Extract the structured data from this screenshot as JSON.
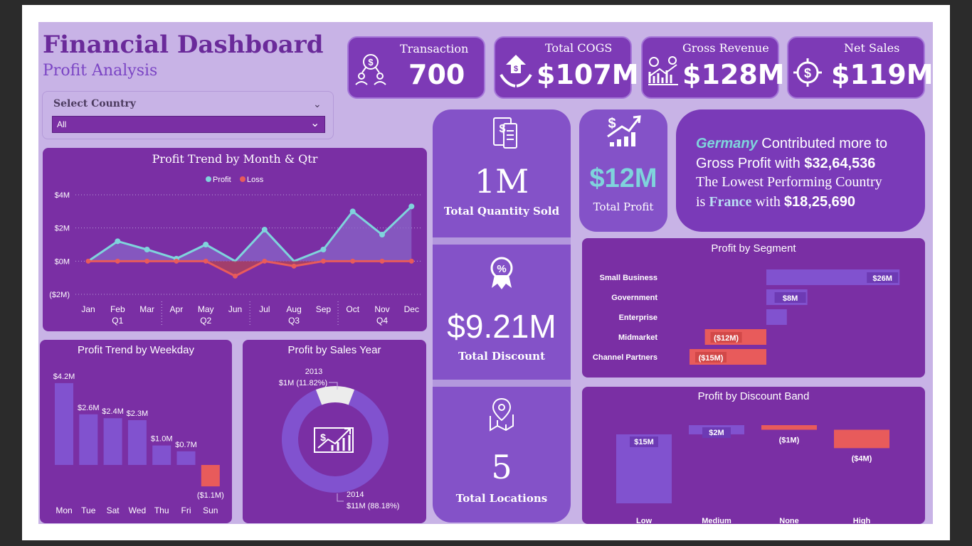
{
  "header": {
    "title": "Financial Dashboard",
    "subtitle": "Profit Analysis"
  },
  "filter": {
    "label": "Select Country",
    "selected": "All"
  },
  "kpis": {
    "transaction": {
      "label": "Transaction",
      "value": "700"
    },
    "cogs": {
      "label": "Total COGS",
      "value": "$107M"
    },
    "gross_revenue": {
      "label": "Gross Revenue",
      "value": "$128M"
    },
    "net_sales": {
      "label": "Net Sales",
      "value": "$119M"
    }
  },
  "center_stack": {
    "quantity": {
      "value": "1M",
      "label": "Total Quantity Sold"
    },
    "discount": {
      "value": "$9.21M",
      "label": "Total Discount"
    },
    "locations": {
      "value": "5",
      "label": "Total Locations"
    }
  },
  "total_profit": {
    "value": "$12M",
    "label": "Total Profit"
  },
  "insight": {
    "top_country": "Germany",
    "line1_rest": " Contributed more to",
    "line2_pre": "Gross Profit with ",
    "top_value": "$32,64,536",
    "line3": "The Lowest Performing Country",
    "line4_pre": "is ",
    "low_country": "France",
    "line4_mid": " with ",
    "low_value": "$18,25,690"
  },
  "colors": {
    "accent_profit": "#7fd4dc",
    "loss": "#e85b5b",
    "bar": "#8152cf",
    "card": "#7a2fa4"
  },
  "chart_data": [
    {
      "type": "line",
      "title": "Profit Trend by Month & Qtr",
      "legend": [
        "Profit",
        "Loss"
      ],
      "categories": [
        "Jan",
        "Feb",
        "Mar",
        "Apr",
        "May",
        "Jun",
        "Jul",
        "Aug",
        "Sep",
        "Oct",
        "Nov",
        "Dec"
      ],
      "quarters": [
        "Q1",
        "Q2",
        "Q3",
        "Q4"
      ],
      "y_ticks": [
        "$4M",
        "$2M",
        "$0M",
        "($2M)"
      ],
      "ylim": [
        -2,
        4
      ],
      "series": [
        {
          "name": "Profit",
          "values": [
            0,
            1.2,
            0.7,
            0.15,
            1.0,
            0,
            1.9,
            0,
            0.7,
            3.0,
            1.6,
            3.3
          ]
        },
        {
          "name": "Loss",
          "values": [
            0,
            0,
            0,
            0,
            0,
            -0.9,
            0,
            -0.3,
            0,
            0,
            0,
            0
          ]
        }
      ]
    },
    {
      "type": "bar",
      "title": "Profit Trend by Weekday",
      "categories": [
        "Mon",
        "Tue",
        "Sat",
        "Wed",
        "Thu",
        "Fri",
        "Sun"
      ],
      "values": [
        4.2,
        2.6,
        2.4,
        2.3,
        1.0,
        0.7,
        -1.1
      ],
      "labels": [
        "$4.2M",
        "$2.6M",
        "$2.4M",
        "$2.3M",
        "$1.0M",
        "$0.7M",
        "($1.1M)"
      ]
    },
    {
      "type": "pie",
      "title": "Profit by Sales Year",
      "slices": [
        {
          "name": "2013",
          "value": 11.82,
          "label": "$1M (11.82%)"
        },
        {
          "name": "2014",
          "value": 88.18,
          "label": "$11M (88.18%)"
        }
      ]
    },
    {
      "type": "bar",
      "title": "Profit by Segment",
      "categories": [
        "Small Business",
        "Government",
        "Enterprise",
        "Midmarket",
        "Channel Partners"
      ],
      "values": [
        26,
        8,
        4,
        -12,
        -15
      ],
      "labels": [
        "$26M",
        "$8M",
        "",
        "($12M)",
        "($15M)"
      ]
    },
    {
      "type": "bar",
      "title": "Profit by Discount Band",
      "categories": [
        "Low",
        "Medium",
        "None",
        "High"
      ],
      "values": [
        15,
        2,
        -1,
        -4
      ],
      "labels": [
        "$15M",
        "$2M",
        "($1M)",
        "($4M)"
      ]
    }
  ]
}
